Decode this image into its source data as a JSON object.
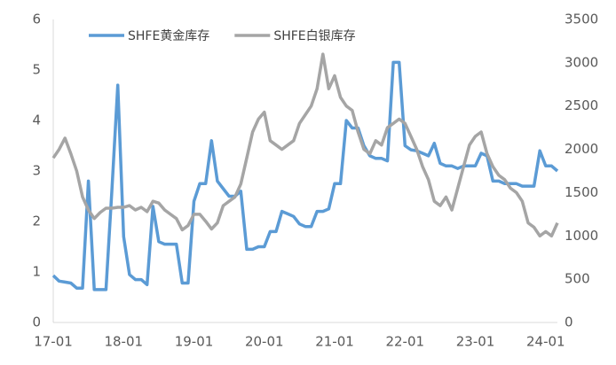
{
  "chart_data": {
    "type": "line",
    "x": [
      "17-01",
      "17-02",
      "17-03",
      "17-04",
      "17-05",
      "17-06",
      "17-07",
      "17-08",
      "17-09",
      "17-10",
      "17-11",
      "17-12",
      "18-01",
      "18-02",
      "18-03",
      "18-04",
      "18-05",
      "18-06",
      "18-07",
      "18-08",
      "18-09",
      "18-10",
      "18-11",
      "18-12",
      "19-01",
      "19-02",
      "19-03",
      "19-04",
      "19-05",
      "19-06",
      "19-07",
      "19-08",
      "19-09",
      "19-10",
      "19-11",
      "19-12",
      "20-01",
      "20-02",
      "20-03",
      "20-04",
      "20-05",
      "20-06",
      "20-07",
      "20-08",
      "20-09",
      "20-10",
      "20-11",
      "20-12",
      "21-01",
      "21-02",
      "21-03",
      "21-04",
      "21-05",
      "21-06",
      "21-07",
      "21-08",
      "21-09",
      "21-10",
      "21-11",
      "21-12",
      "22-01",
      "22-02",
      "22-03",
      "22-04",
      "22-05",
      "22-06",
      "22-07",
      "22-08",
      "22-09",
      "22-10",
      "22-11",
      "22-12",
      "23-01",
      "23-02",
      "23-03",
      "23-04",
      "23-05",
      "23-06",
      "23-07",
      "23-08",
      "23-09",
      "23-10",
      "23-11",
      "23-12",
      "24-01",
      "24-02",
      "24-03"
    ],
    "xticks": [
      "17-01",
      "18-01",
      "19-01",
      "20-01",
      "21-01",
      "22-01",
      "23-01",
      "24-01"
    ],
    "series": [
      {
        "name": "SHFE黄金库存",
        "color": "#5b9bd5",
        "axis": "y",
        "values": [
          0.93,
          0.82,
          0.8,
          0.78,
          0.68,
          0.68,
          2.8,
          0.65,
          0.65,
          0.65,
          2.6,
          4.7,
          1.7,
          0.95,
          0.85,
          0.85,
          0.75,
          2.3,
          1.6,
          1.55,
          1.55,
          1.55,
          0.78,
          0.78,
          2.4,
          2.75,
          2.75,
          3.6,
          2.8,
          2.65,
          2.5,
          2.5,
          2.6,
          1.45,
          1.45,
          1.5,
          1.5,
          1.8,
          1.8,
          2.2,
          2.15,
          2.1,
          1.95,
          1.9,
          1.9,
          2.2,
          2.2,
          2.25,
          2.75,
          2.75,
          4.0,
          3.85,
          3.85,
          3.5,
          3.3,
          3.25,
          3.25,
          3.2,
          5.15,
          5.15,
          3.5,
          3.42,
          3.4,
          3.35,
          3.3,
          3.55,
          3.15,
          3.1,
          3.1,
          3.05,
          3.1,
          3.1,
          3.1,
          3.35,
          3.3,
          2.8,
          2.8,
          2.75,
          2.75,
          2.75,
          2.7,
          2.7,
          2.7,
          3.4,
          3.1,
          3.1,
          3.0
        ]
      },
      {
        "name": "SHFE白银库存",
        "color": "#a5a5a5",
        "axis": "y2",
        "values": [
          1900,
          2000,
          2130,
          1950,
          1750,
          1450,
          1300,
          1200,
          1270,
          1320,
          1320,
          1330,
          1330,
          1350,
          1300,
          1330,
          1280,
          1400,
          1380,
          1300,
          1250,
          1200,
          1070,
          1120,
          1250,
          1250,
          1170,
          1080,
          1150,
          1350,
          1400,
          1450,
          1600,
          1900,
          2200,
          2350,
          2430,
          2100,
          2050,
          2000,
          2050,
          2100,
          2300,
          2400,
          2500,
          2700,
          3100,
          2700,
          2850,
          2600,
          2500,
          2450,
          2200,
          2000,
          1950,
          2100,
          2050,
          2250,
          2300,
          2350,
          2300,
          2150,
          2000,
          1800,
          1650,
          1400,
          1350,
          1450,
          1300,
          1550,
          1800,
          2050,
          2150,
          2200,
          1950,
          1800,
          1700,
          1650,
          1550,
          1500,
          1400,
          1150,
          1100,
          1000,
          1050,
          1000,
          1150
        ]
      }
    ],
    "ylim": [
      0,
      6
    ],
    "yticks": [
      0,
      1,
      2,
      3,
      4,
      5,
      6
    ],
    "y2lim": [
      0,
      3500
    ],
    "y2ticks": [
      0,
      500,
      1000,
      1500,
      2000,
      2500,
      3000,
      3500
    ],
    "legend": "top",
    "grid": false
  }
}
